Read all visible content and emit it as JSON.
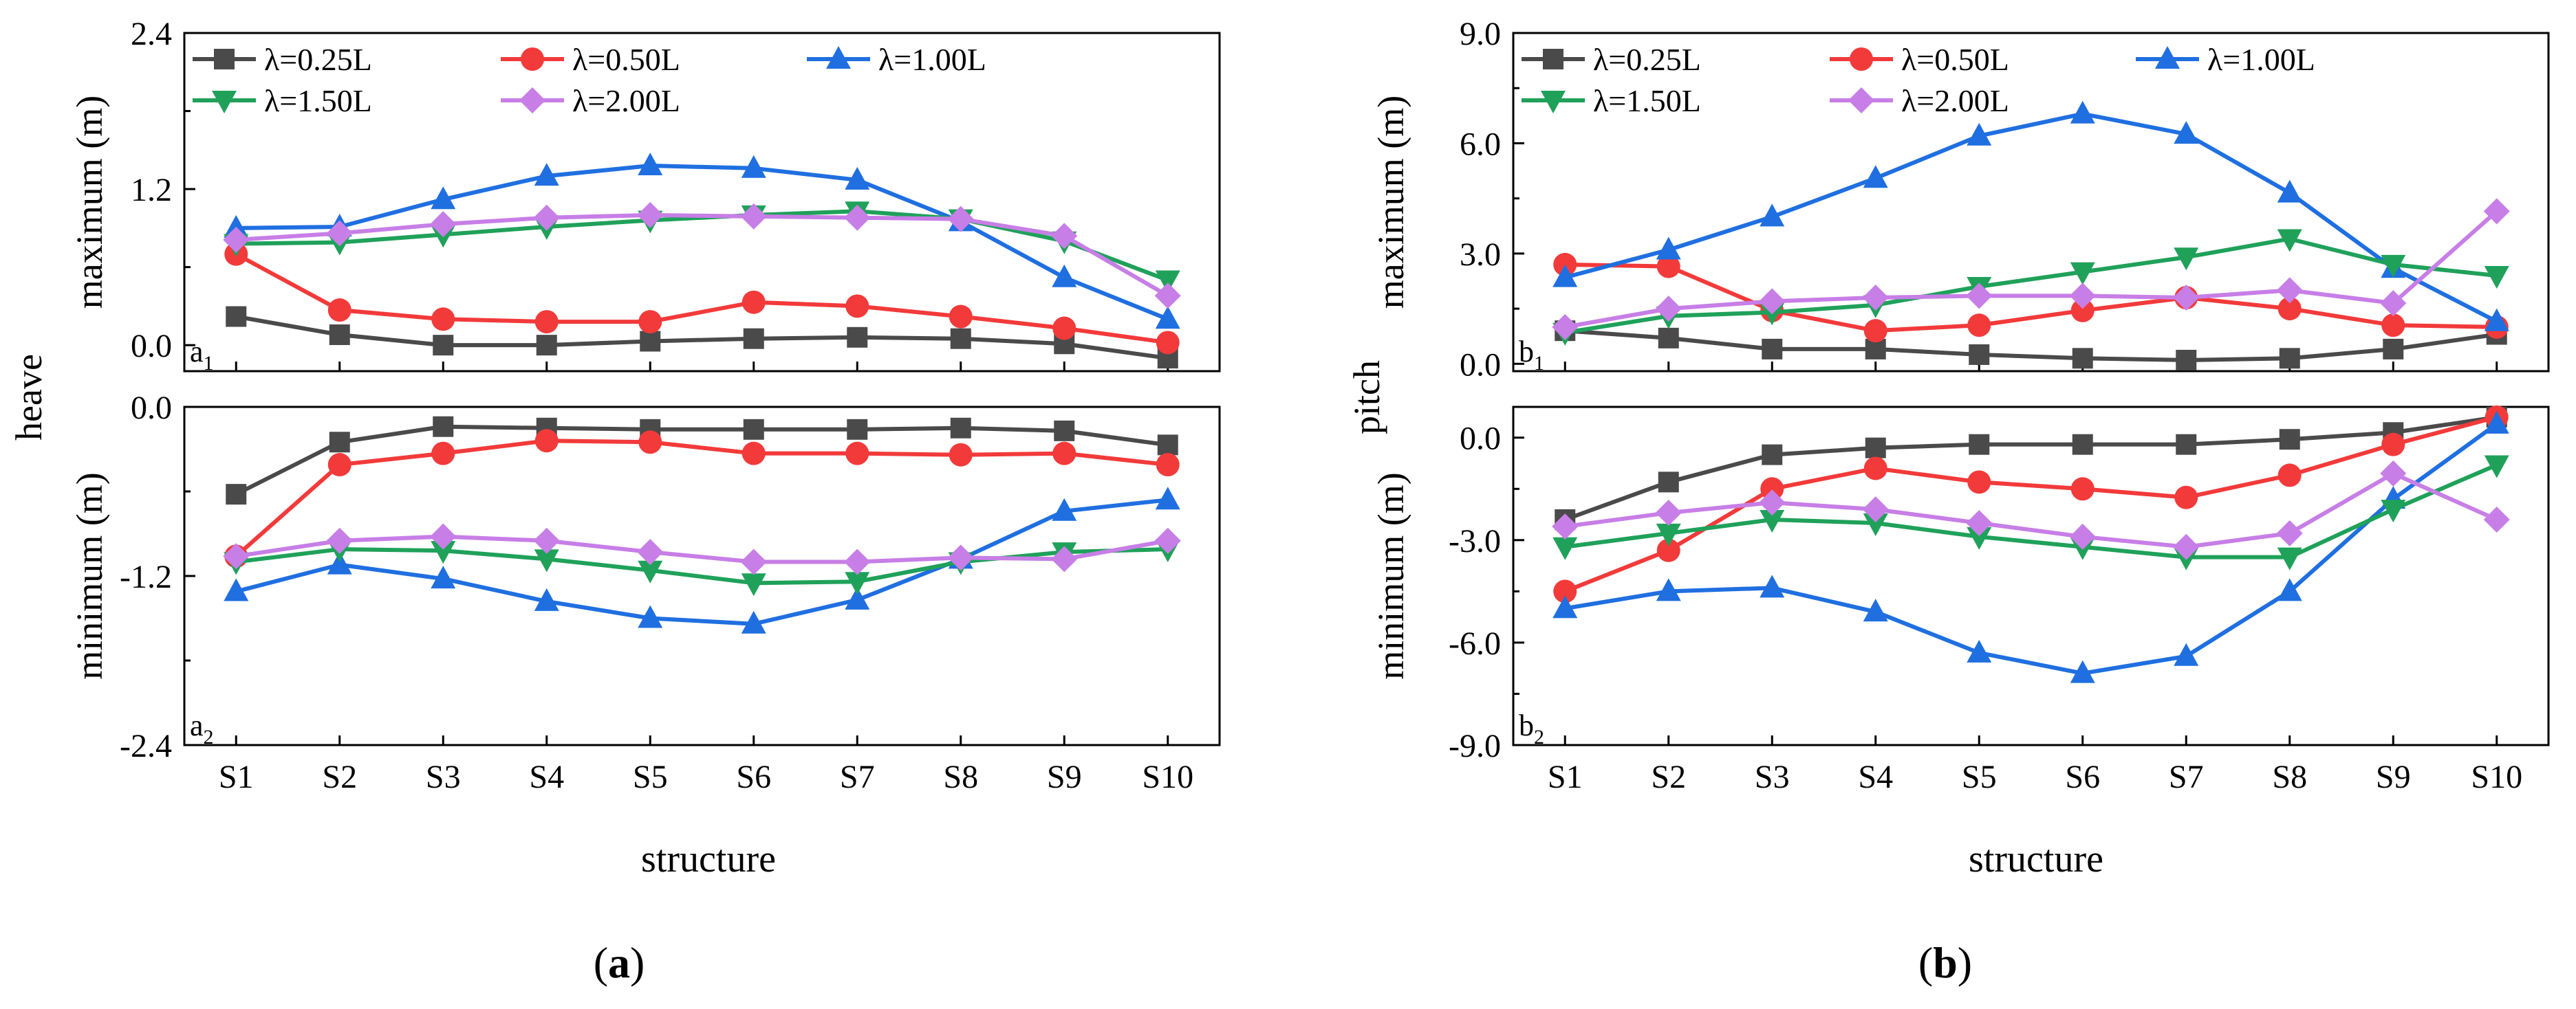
{
  "colors": {
    "s025": "#4a4a4a",
    "s050": "#f23a3a",
    "s100": "#1f6fe0",
    "s150": "#1fa15a",
    "s200": "#c77ee6"
  },
  "categories": [
    "S1",
    "S2",
    "S3",
    "S4",
    "S5",
    "S6",
    "S7",
    "S8",
    "S9",
    "S10"
  ],
  "xlabel": "structure",
  "chart_data": [
    {
      "id": "a1",
      "type": "line",
      "panel": "a1",
      "ylim": [
        -0.2,
        2.4
      ],
      "yticks": [
        "2.4",
        "1.2",
        "0.0"
      ],
      "ylabel": "maximum (m)",
      "series": [
        {
          "name": "λ=0.25L",
          "color": "s025",
          "marker": "square",
          "values": [
            0.22,
            0.08,
            0.0,
            0.0,
            0.03,
            0.05,
            0.06,
            0.05,
            0.01,
            -0.1
          ]
        },
        {
          "name": "λ=0.50L",
          "color": "s050",
          "marker": "circle",
          "values": [
            0.7,
            0.27,
            0.2,
            0.18,
            0.18,
            0.33,
            0.3,
            0.22,
            0.13,
            0.02
          ]
        },
        {
          "name": "λ=1.00L",
          "color": "s100",
          "marker": "triangle-up",
          "values": [
            0.9,
            0.91,
            1.12,
            1.3,
            1.38,
            1.36,
            1.27,
            0.95,
            0.52,
            0.2
          ]
        },
        {
          "name": "λ=1.50L",
          "color": "s150",
          "marker": "triangle-down",
          "values": [
            0.78,
            0.79,
            0.85,
            0.91,
            0.96,
            1.0,
            1.03,
            0.97,
            0.8,
            0.5
          ]
        },
        {
          "name": "λ=2.00L",
          "color": "s200",
          "marker": "diamond",
          "values": [
            0.81,
            0.86,
            0.93,
            0.98,
            1.0,
            0.99,
            0.98,
            0.97,
            0.84,
            0.38
          ]
        }
      ]
    },
    {
      "id": "a2",
      "type": "line",
      "panel": "a2",
      "ylim": [
        -2.4,
        0.0
      ],
      "yticks": [
        "0.0",
        "-1.2",
        "-2.4"
      ],
      "ylabel": "minimum (m)",
      "series": [
        {
          "name": "λ=0.25L",
          "color": "s025",
          "marker": "square",
          "values": [
            -0.62,
            -0.25,
            -0.14,
            -0.15,
            -0.16,
            -0.16,
            -0.16,
            -0.15,
            -0.17,
            -0.27
          ]
        },
        {
          "name": "λ=0.50L",
          "color": "s050",
          "marker": "circle",
          "values": [
            -1.06,
            -0.41,
            -0.33,
            -0.24,
            -0.25,
            -0.33,
            -0.33,
            -0.34,
            -0.33,
            -0.41
          ]
        },
        {
          "name": "λ=1.00L",
          "color": "s100",
          "marker": "triangle-up",
          "values": [
            -1.31,
            -1.12,
            -1.22,
            -1.38,
            -1.5,
            -1.54,
            -1.37,
            -1.08,
            -0.74,
            -0.66
          ]
        },
        {
          "name": "λ=1.50L",
          "color": "s150",
          "marker": "triangle-down",
          "values": [
            -1.1,
            -1.01,
            -1.02,
            -1.08,
            -1.16,
            -1.25,
            -1.24,
            -1.1,
            -1.03,
            -1.01
          ]
        },
        {
          "name": "λ=2.00L",
          "color": "s200",
          "marker": "diamond",
          "values": [
            -1.06,
            -0.95,
            -0.92,
            -0.95,
            -1.03,
            -1.1,
            -1.1,
            -1.07,
            -1.08,
            -0.95
          ]
        }
      ]
    },
    {
      "id": "b1",
      "type": "line",
      "panel": "b1",
      "ylim": [
        -0.2,
        9.0
      ],
      "yticks": [
        "9.0",
        "6.0",
        "3.0",
        "0.0"
      ],
      "ylabel": "maximum (m)",
      "series": [
        {
          "name": "λ=0.25L",
          "color": "s025",
          "marker": "square",
          "values": [
            0.9,
            0.7,
            0.4,
            0.4,
            0.25,
            0.15,
            0.1,
            0.15,
            0.4,
            0.8
          ]
        },
        {
          "name": "λ=0.50L",
          "color": "s050",
          "marker": "circle",
          "values": [
            2.7,
            2.65,
            1.45,
            0.9,
            1.05,
            1.45,
            1.8,
            1.5,
            1.05,
            1.0
          ]
        },
        {
          "name": "λ=1.00L",
          "color": "s100",
          "marker": "triangle-up",
          "values": [
            2.35,
            3.1,
            4.0,
            5.05,
            6.2,
            6.8,
            6.25,
            4.65,
            2.6,
            1.15
          ]
        },
        {
          "name": "λ=1.50L",
          "color": "s150",
          "marker": "triangle-down",
          "values": [
            0.85,
            1.3,
            1.4,
            1.6,
            2.1,
            2.5,
            2.9,
            3.4,
            2.7,
            2.4
          ]
        },
        {
          "name": "λ=2.00L",
          "color": "s200",
          "marker": "diamond",
          "values": [
            1.0,
            1.5,
            1.7,
            1.8,
            1.85,
            1.85,
            1.8,
            2.0,
            1.65,
            4.15
          ]
        }
      ]
    },
    {
      "id": "b2",
      "type": "line",
      "panel": "b2",
      "ylim": [
        -9.0,
        0.9
      ],
      "yticks": [
        "0.0",
        "-3.0",
        "-6.0",
        "-9.0"
      ],
      "ylabel": "minimum (m)",
      "series": [
        {
          "name": "λ=0.25L",
          "color": "s025",
          "marker": "square",
          "values": [
            -2.4,
            -1.3,
            -0.5,
            -0.3,
            -0.2,
            -0.2,
            -0.2,
            -0.05,
            0.15,
            0.6
          ]
        },
        {
          "name": "λ=0.50L",
          "color": "s050",
          "marker": "circle",
          "values": [
            -4.5,
            -3.3,
            -1.5,
            -0.9,
            -1.3,
            -1.5,
            -1.75,
            -1.1,
            -0.2,
            0.6
          ]
        },
        {
          "name": "λ=1.00L",
          "color": "s100",
          "marker": "triangle-up",
          "values": [
            -5.0,
            -4.5,
            -4.4,
            -5.1,
            -6.3,
            -6.9,
            -6.4,
            -4.5,
            -1.8,
            0.4
          ]
        },
        {
          "name": "λ=1.50L",
          "color": "s150",
          "marker": "triangle-down",
          "values": [
            -3.2,
            -2.8,
            -2.4,
            -2.5,
            -2.9,
            -3.2,
            -3.5,
            -3.5,
            -2.1,
            -0.8
          ]
        },
        {
          "name": "λ=2.00L",
          "color": "s200",
          "marker": "diamond",
          "values": [
            -2.6,
            -2.2,
            -1.9,
            -2.1,
            -2.5,
            -2.9,
            -3.2,
            -2.8,
            -1.05,
            -2.4
          ]
        }
      ]
    }
  ],
  "panel_labels": {
    "a1": "a",
    "a1_sub": "1",
    "a2": "a",
    "a2_sub": "2",
    "b1": "b",
    "b1_sub": "1",
    "b2": "b",
    "b2_sub": "2"
  },
  "group_ylabels": {
    "a": "heave",
    "b": "pitch"
  },
  "subfigure_labels": {
    "a": "a",
    "b": "b"
  }
}
